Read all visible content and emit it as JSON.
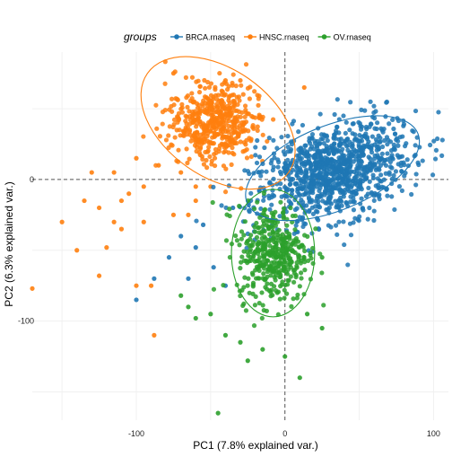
{
  "chart_data": {
    "type": "scatter",
    "title": "",
    "xlabel": "PC1 (7.8% explained var.)",
    "ylabel": "PC2 (6.3% explained var.)",
    "xlim": [
      -170,
      110
    ],
    "ylim": [
      -170,
      90
    ],
    "x_ticks": [
      -100,
      0,
      100
    ],
    "y_ticks": [
      -100,
      0
    ],
    "x_tick_labels": [
      "-100",
      "0",
      "100"
    ],
    "y_tick_labels": [
      "-100",
      "0"
    ],
    "reference_lines": {
      "x": 0,
      "y": 0,
      "style": "dashed"
    },
    "grid": true,
    "legend": {
      "title": "groups",
      "placement": "top"
    },
    "series": [
      {
        "name": "BRCA.rnaseq",
        "color": "#1f77b4",
        "center": [
          32,
          5
        ],
        "ellipse": {
          "center": [
            32,
            8
          ],
          "semi_axes": [
            62,
            30
          ],
          "angle_deg": 22
        },
        "n_points": 1050,
        "spread": [
          26,
          16
        ],
        "outliers": [
          [
            -100,
            -85
          ],
          [
            -70,
            -40
          ],
          [
            -78,
            -55
          ],
          [
            -60,
            -48
          ],
          [
            -55,
            -32
          ],
          [
            -48,
            -62
          ],
          [
            -40,
            -75
          ],
          [
            -65,
            -70
          ],
          [
            -88,
            -70
          ],
          [
            -35,
            -20
          ]
        ]
      },
      {
        "name": "HNSC.rnaseq",
        "color": "#ff7f0e",
        "center": [
          -47,
          40
        ],
        "ellipse": {
          "center": [
            -45,
            40
          ],
          "semi_axes": [
            58,
            38
          ],
          "angle_deg": -35
        },
        "n_points": 520,
        "spread": [
          15,
          14
        ],
        "outliers": [
          [
            -170,
            -77
          ],
          [
            -140,
            -50
          ],
          [
            -150,
            -30
          ],
          [
            -135,
            -15
          ],
          [
            -125,
            -20
          ],
          [
            -120,
            -48
          ],
          [
            -110,
            -15
          ],
          [
            -115,
            5
          ],
          [
            -105,
            -10
          ],
          [
            -95,
            -5
          ],
          [
            -100,
            15
          ],
          [
            -130,
            5
          ],
          [
            -90,
            -75
          ],
          [
            -100,
            -75
          ],
          [
            -88,
            -110
          ],
          [
            -110,
            -35
          ],
          [
            -95,
            -30
          ],
          [
            -75,
            -25
          ],
          [
            -70,
            5
          ],
          [
            -60,
            -5
          ],
          [
            -50,
            -5
          ],
          [
            -85,
            10
          ],
          [
            -115,
            -30
          ],
          [
            -125,
            -68
          ],
          [
            -75,
            75
          ],
          [
            -40,
            70
          ],
          [
            -30,
            70
          ],
          [
            13,
            65
          ],
          [
            -60,
            -15
          ],
          [
            -65,
            -25
          ]
        ]
      },
      {
        "name": "OV.rnaseq",
        "color": "#2ca02c",
        "center": [
          -8,
          -52
        ],
        "ellipse": {
          "center": [
            -8,
            -52
          ],
          "semi_axes": [
            28,
            45
          ],
          "angle_deg": 0
        },
        "n_points": 420,
        "spread": [
          12,
          17
        ],
        "outliers": [
          [
            -45,
            -165
          ],
          [
            -25,
            -128
          ],
          [
            10,
            -140
          ],
          [
            -40,
            -110
          ],
          [
            -50,
            -95
          ],
          [
            -60,
            -98
          ],
          [
            -65,
            -90
          ],
          [
            -70,
            -82
          ],
          [
            25,
            -105
          ],
          [
            -30,
            -115
          ],
          [
            -15,
            -120
          ],
          [
            0,
            -125
          ],
          [
            15,
            -95
          ],
          [
            25,
            -55
          ]
        ]
      }
    ]
  }
}
